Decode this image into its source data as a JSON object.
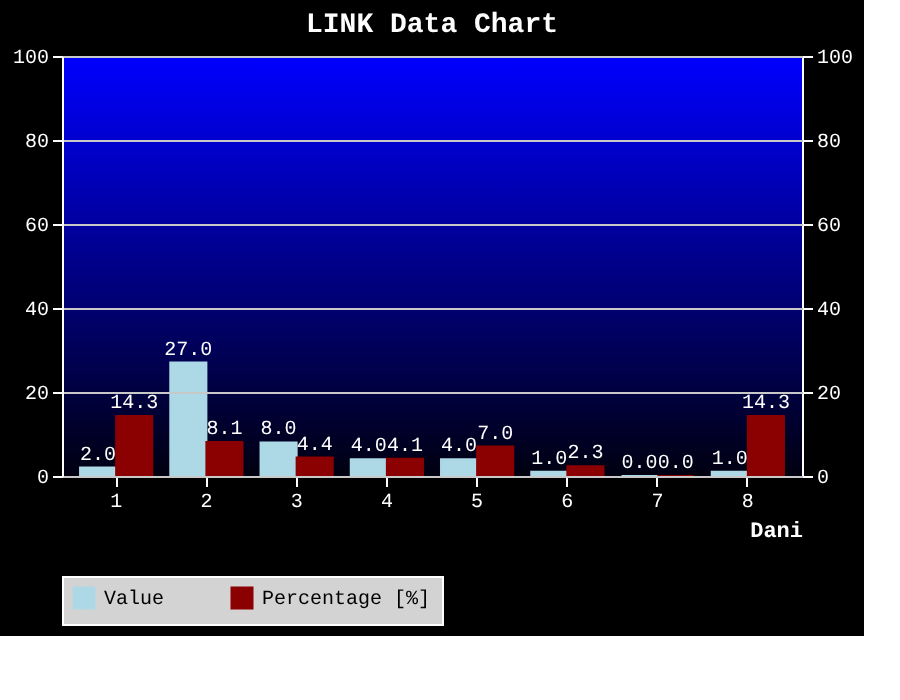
{
  "chart_data": {
    "type": "bar",
    "title": "LINK Data Chart",
    "xlabel": "Dani",
    "categories": [
      "1",
      "2",
      "3",
      "4",
      "5",
      "6",
      "7",
      "8"
    ],
    "series": [
      {
        "name": "Value",
        "color": "#add8e6",
        "values": [
          2.0,
          27.0,
          8.0,
          4.0,
          4.0,
          1.0,
          0.0,
          1.0
        ],
        "value_labels": [
          "2.0",
          "27.0",
          "8.0",
          "4.0",
          "4.0",
          "1.0",
          "0.0",
          "1.0"
        ]
      },
      {
        "name": "Percentage [%]",
        "color": "#8b0000",
        "values": [
          14.3,
          8.1,
          4.4,
          4.1,
          7.0,
          2.3,
          0.0,
          14.3
        ],
        "value_labels": [
          "14.3",
          "8.1",
          "4.4",
          "4.1",
          "7.0",
          "2.3",
          "0.0",
          "14.3"
        ]
      }
    ],
    "ylim": [
      0,
      100
    ],
    "yticks": [
      0,
      20,
      40,
      60,
      80,
      100
    ],
    "y2lim": [
      0,
      100
    ],
    "y2ticks": [
      0,
      20,
      40,
      60,
      80,
      100
    ],
    "grid": "y",
    "legend": "bottom"
  }
}
